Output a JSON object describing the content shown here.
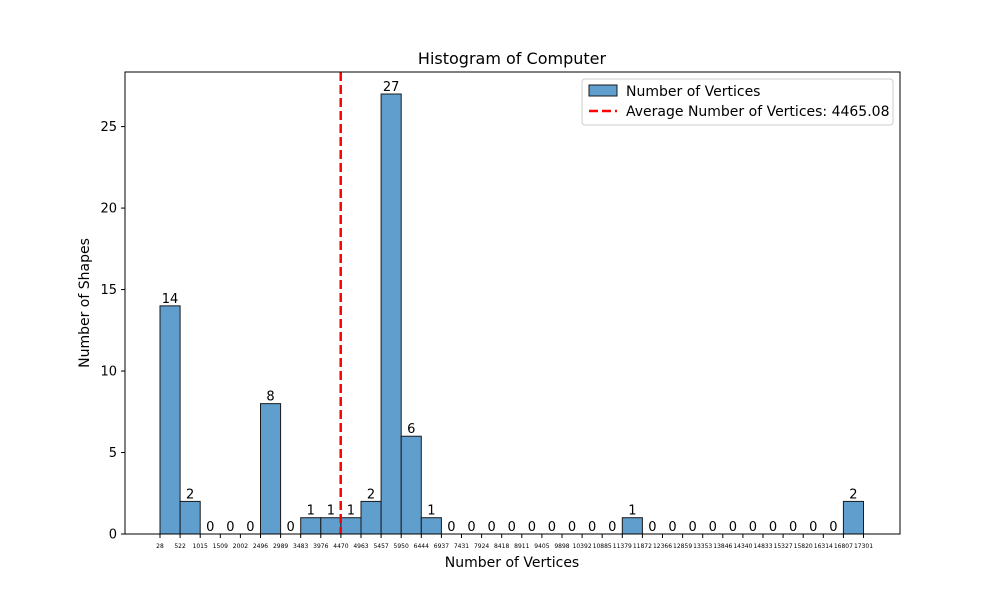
{
  "chart_data": {
    "type": "bar",
    "title": "Histogram of Computer",
    "xlabel": "Number of Vertices",
    "ylabel": "Number of Shapes",
    "ylim": [
      0,
      28.35
    ],
    "yticks": [
      0,
      5,
      10,
      15,
      20,
      25
    ],
    "bin_edges": [
      28,
      522,
      1015,
      1509,
      2002,
      2496,
      2989,
      3483,
      3976,
      4470,
      4963,
      5457,
      5950,
      6444,
      6937,
      7431,
      7924,
      8418,
      8911,
      9405,
      9898,
      10392,
      10885,
      11379,
      11872,
      12366,
      12859,
      13353,
      13846,
      14340,
      14833,
      15327,
      15820,
      16314,
      16807,
      17301
    ],
    "counts": [
      14,
      2,
      0,
      0,
      0,
      8,
      0,
      1,
      1,
      1,
      2,
      27,
      6,
      1,
      0,
      0,
      0,
      0,
      0,
      0,
      0,
      0,
      0,
      1,
      0,
      0,
      0,
      0,
      0,
      0,
      0,
      0,
      0,
      0,
      2
    ],
    "average_line": {
      "value": 4465.08
    },
    "legend": {
      "placement": "top-right",
      "entries": [
        "Number of Vertices",
        "Average Number of Vertices: 4465.08"
      ]
    },
    "colors": {
      "bar_fill": "#5f9ecd",
      "bar_edge": "#1a1a1a",
      "average_line": "#ff0000"
    },
    "grid": false
  }
}
